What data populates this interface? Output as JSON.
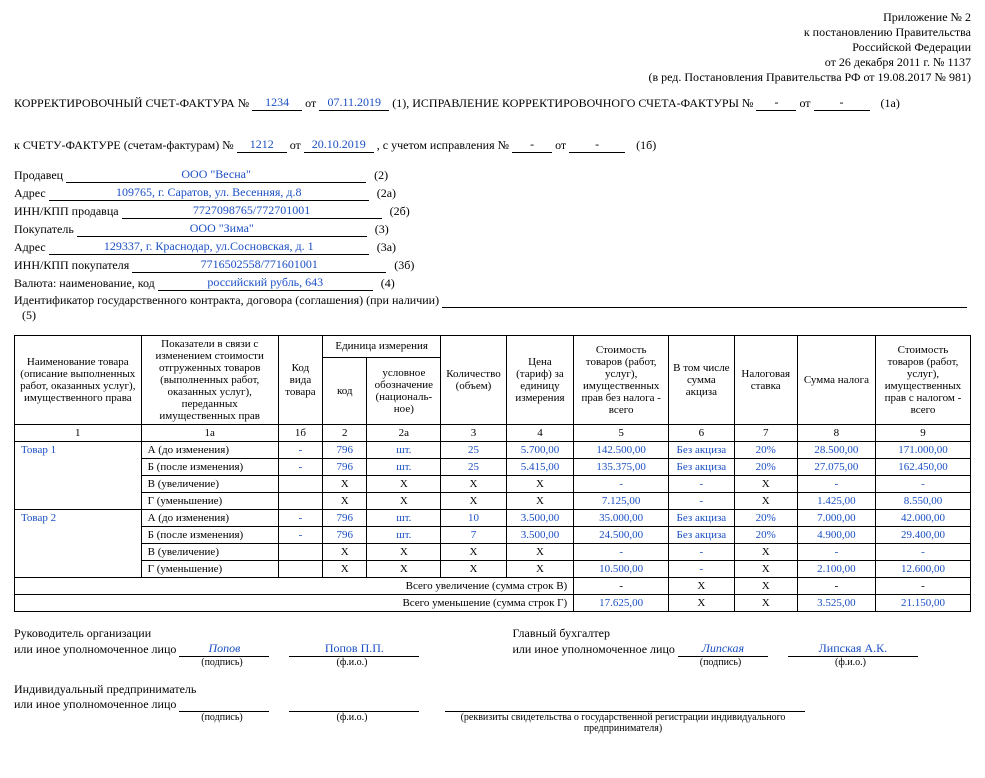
{
  "header": {
    "l1": "Приложение № 2",
    "l2": "к постановлению Правительства",
    "l3": "Российской Федерации",
    "l4": "от 26 декабря 2011 г. № 1137",
    "l5": "(в ред. Постановления Правительства РФ от 19.08.2017 № 981)"
  },
  "title": {
    "t1": "КОРРЕКТИРОВОЧНЫЙ СЧЕТ-ФАКТУРА  №",
    "num": "1234",
    "ot": "от",
    "date": "07.11.2019",
    "one": "(1),",
    "t2": "ИСПРАВЛЕНИЕ КОРРЕКТИРОВОЧНОГО СЧЕТА-ФАКТУРЫ  №",
    "blank1": "-",
    "blank2": "-",
    "onea": "(1а)"
  },
  "ref": {
    "pre": "к СЧЕТУ-ФАКТУРЕ (счетам-фактурам)  №",
    "num": "1212",
    "ot": "от",
    "date": "20.10.2019",
    "post": ", с учетом исправления  №",
    "b1": "-",
    "b2": "-",
    "onea": "(1б)"
  },
  "party": {
    "seller_lbl": "Продавец",
    "seller": "ООО \"Весна\"",
    "seller_n": "(2)",
    "addr_lbl": "Адрес",
    "seller_addr": "109765, г. Саратов, ул. Весенняя, д.8",
    "seller_addr_n": "(2а)",
    "inn_s_lbl": "ИНН/КПП продавца",
    "inn_s": "7727098765/772701001",
    "inn_s_n": "(2б)",
    "buyer_lbl": "Покупатель",
    "buyer": "ООО \"Зима\"",
    "buyer_n": "(3)",
    "buyer_addr": "129337, г. Краснодар, ул.Сосновская, д. 1",
    "buyer_addr_n": "(3а)",
    "inn_b_lbl": "ИНН/КПП покупателя",
    "inn_b": "7716502558/771601001",
    "inn_b_n": "(3б)",
    "cur_lbl": "Валюта: наименование, код",
    "cur": "российский рубль, 643",
    "cur_n": "(4)",
    "gk_lbl": "Идентификатор государственного контракта, договора (соглашения) (при наличии)",
    "gk": "",
    "gk_n": "(5)"
  },
  "thead": {
    "c1": "Наименование товара (описание выполненных работ, оказанных услуг), имущественного права",
    "c1a": "Показатели в связи с изменением стоимости отгруженных товаров (выполненных работ, оказанных услуг), переданных имущественных прав",
    "c1b": "Код вида товара",
    "c2g": "Единица измерения",
    "c2": "код",
    "c2a": "условное обозначение (националь­ное)",
    "c3": "Количество (объем)",
    "c4": "Цена (тариф) за единицу измерения",
    "c5": "Стоимость товаров (работ, услуг), имущественных прав без налога - всего",
    "c6": "В том числе сумма акциза",
    "c7": "Налоговая ставка",
    "c8": "Сумма налога",
    "c9": "Стоимость товаров (работ, услуг), имущественных прав с налогом - всего",
    "n1": "1",
    "n1a": "1а",
    "n1b": "1б",
    "n2": "2",
    "n2a": "2а",
    "n3": "3",
    "n4": "4",
    "n5": "5",
    "n6": "6",
    "n7": "7",
    "n8": "8",
    "n9": "9"
  },
  "labels": {
    "A": "А (до изменения)",
    "B": "Б (после изменения)",
    "V": "В (увеличение)",
    "G": "Г (уменьшение)",
    "totV": "Всего увеличение (сумма строк В)",
    "totG": "Всего уменьшение (сумма строк Г)"
  },
  "goods": [
    {
      "name": "Товар 1",
      "A": {
        "kvt": "-",
        "kod": "796",
        "ob": "шт.",
        "qty": "25",
        "price": "5.700,00",
        "cost": "142.500,00",
        "akc": "Без акциза",
        "rate": "20%",
        "tax": "28.500,00",
        "tot": "171.000,00"
      },
      "B": {
        "kvt": "-",
        "kod": "796",
        "ob": "шт.",
        "qty": "25",
        "price": "5.415,00",
        "cost": "135.375,00",
        "akc": "Без акциза",
        "rate": "20%",
        "tax": "27.075,00",
        "tot": "162.450,00"
      },
      "V": {
        "kvt": "",
        "kod": "Х",
        "ob": "Х",
        "qty": "Х",
        "price": "Х",
        "cost": "-",
        "akc": "-",
        "rate": "Х",
        "tax": "-",
        "tot": "-"
      },
      "G": {
        "kvt": "",
        "kod": "Х",
        "ob": "Х",
        "qty": "Х",
        "price": "Х",
        "cost": "7.125,00",
        "akc": "-",
        "rate": "Х",
        "tax": "1.425,00",
        "tot": "8.550,00"
      }
    },
    {
      "name": "Товар 2",
      "A": {
        "kvt": "-",
        "kod": "796",
        "ob": "шт.",
        "qty": "10",
        "price": "3.500,00",
        "cost": "35.000,00",
        "akc": "Без акциза",
        "rate": "20%",
        "tax": "7.000,00",
        "tot": "42.000,00"
      },
      "B": {
        "kvt": "-",
        "kod": "796",
        "ob": "шт.",
        "qty": "7",
        "price": "3.500,00",
        "cost": "24.500,00",
        "akc": "Без акциза",
        "rate": "20%",
        "tax": "4.900,00",
        "tot": "29.400,00"
      },
      "V": {
        "kvt": "",
        "kod": "Х",
        "ob": "Х",
        "qty": "Х",
        "price": "Х",
        "cost": "-",
        "akc": "-",
        "rate": "Х",
        "tax": "-",
        "tot": "-"
      },
      "G": {
        "kvt": "",
        "kod": "Х",
        "ob": "Х",
        "qty": "Х",
        "price": "Х",
        "cost": "10.500,00",
        "akc": "-",
        "rate": "Х",
        "tax": "2.100,00",
        "tot": "12.600,00"
      }
    }
  ],
  "totals": {
    "V": {
      "cost": "-",
      "akc": "Х",
      "rate": "Х",
      "tax": "-",
      "tot": "-"
    },
    "G": {
      "cost": "17.625,00",
      "akc": "Х",
      "rate": "Х",
      "tax": "3.525,00",
      "tot": "21.150,00"
    }
  },
  "sig": {
    "ruk_lbl1": "Руководитель организации",
    "ruk_lbl2": "или иное уполномоченное лицо",
    "ruk_sign": "Попов",
    "ruk_fio": "Попов П.П.",
    "gb_lbl1": "Главный бухгалтер",
    "gb_lbl2": "или иное уполномоченное лицо",
    "gb_sign": "Липская",
    "gb_fio": "Липская А.К.",
    "ip_lbl1": "Индивидуальный предприниматель",
    "ip_lbl2": "или иное уполномоченное лицо",
    "cap_sign": "(подпись)",
    "cap_fio": "(ф.и.о.)",
    "cap_rekv": "(реквизиты свидетельства о государственной регистрации индивидуального предпринимателя)"
  },
  "style": {
    "blue": "#1a4fc4",
    "col_widths": [
      "120",
      "130",
      "42",
      "42",
      "70",
      "62",
      "64",
      "90",
      "62",
      "60",
      "74",
      "90"
    ]
  },
  "watermark": ""
}
